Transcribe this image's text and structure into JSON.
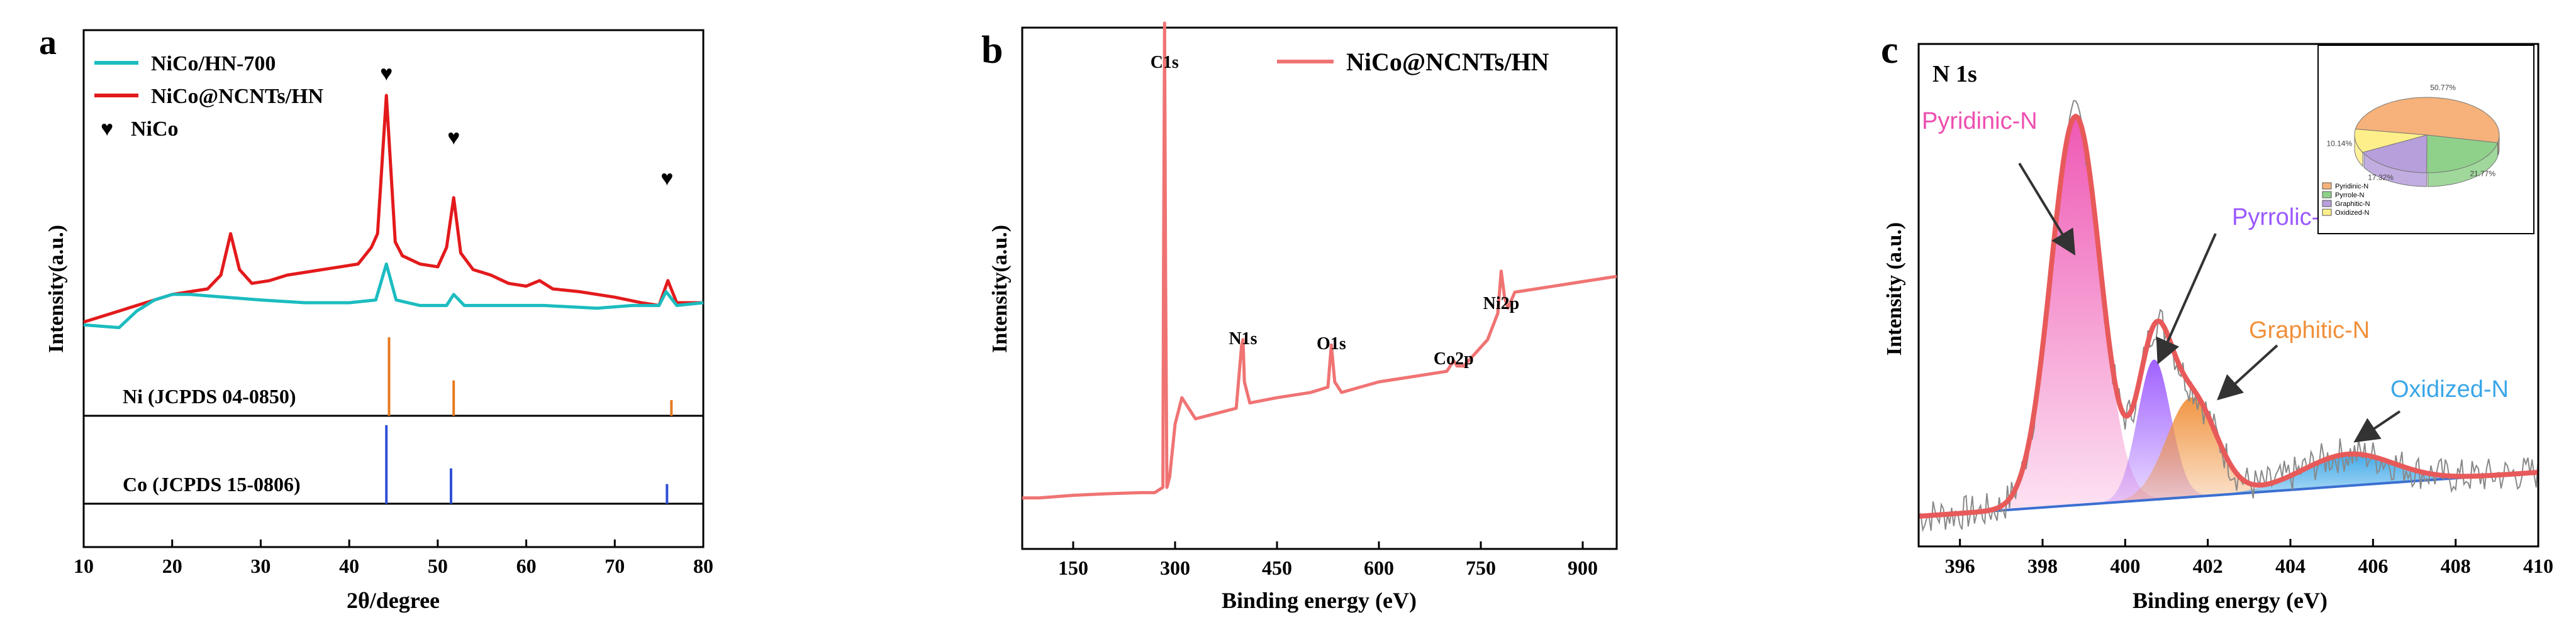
{
  "chart_data": [
    {
      "type": "line",
      "panel_label": "a",
      "title": "",
      "xlabel": "2θ/degree",
      "ylabel": "Intensity(a.u.)",
      "xlim": [
        10,
        80
      ],
      "xticks": [
        "10",
        "20",
        "30",
        "40",
        "50",
        "60",
        "70",
        "80"
      ],
      "legend": [
        "NiCo/HN-700",
        "NiCo@NCNTs/HN",
        "NiCo"
      ],
      "series": [
        {
          "name": "NiCo@NCNTs/HN",
          "color": "#e31a1c",
          "x": [
            10,
            12,
            14,
            16,
            18,
            20,
            22,
            24,
            25.5,
            26.6,
            27.6,
            29,
            31,
            33,
            35,
            37,
            39,
            41,
            42.5,
            43.2,
            44.2,
            45.2,
            46,
            48,
            50,
            51,
            51.8,
            52.6,
            54,
            56,
            58,
            60,
            61.5,
            63,
            66,
            70,
            73,
            75,
            76,
            77,
            80
          ],
          "y": [
            0.13,
            0.15,
            0.17,
            0.19,
            0.21,
            0.23,
            0.24,
            0.25,
            0.3,
            0.45,
            0.32,
            0.27,
            0.28,
            0.3,
            0.31,
            0.32,
            0.33,
            0.34,
            0.4,
            0.45,
            0.95,
            0.42,
            0.37,
            0.34,
            0.33,
            0.4,
            0.58,
            0.38,
            0.32,
            0.3,
            0.27,
            0.26,
            0.28,
            0.25,
            0.24,
            0.22,
            0.2,
            0.19,
            0.28,
            0.2,
            0.2
          ]
        },
        {
          "name": "NiCo/HN-700",
          "color": "#1bbcc0",
          "x": [
            10,
            14,
            16,
            18,
            20,
            22,
            26,
            30,
            35,
            40,
            43,
            44.2,
            45.3,
            48,
            51,
            51.8,
            53,
            57,
            62,
            68,
            72,
            75,
            75.8,
            77,
            80
          ],
          "y": [
            0.12,
            0.11,
            0.17,
            0.21,
            0.23,
            0.23,
            0.22,
            0.21,
            0.2,
            0.2,
            0.21,
            0.34,
            0.21,
            0.19,
            0.19,
            0.23,
            0.19,
            0.19,
            0.19,
            0.18,
            0.19,
            0.19,
            0.24,
            0.19,
            0.2
          ]
        }
      ],
      "references": [
        {
          "label": "Ni (JCPDS 04-0850)",
          "color": "#e8791f",
          "peaks": [
            {
              "x": 44.5,
              "h": 1
            },
            {
              "x": 51.8,
              "h": 0.45
            },
            {
              "x": 76.4,
              "h": 0.2
            }
          ]
        },
        {
          "label": "Co (JCPDS 15-0806)",
          "color": "#2f4fd6",
          "peaks": [
            {
              "x": 44.2,
              "h": 1
            },
            {
              "x": 51.5,
              "h": 0.45
            },
            {
              "x": 75.9,
              "h": 0.25
            }
          ]
        }
      ],
      "annotations": [
        {
          "text": "♥",
          "x": 44.2
        },
        {
          "text": "♥",
          "x": 51.8
        },
        {
          "text": "♥",
          "x": 75.9
        }
      ]
    },
    {
      "type": "line",
      "panel_label": "b",
      "title": "",
      "xlabel": "Binding energy (eV)",
      "ylabel": "Intensity(a.u.)",
      "xlim": [
        75,
        950
      ],
      "xticks": [
        "150",
        "300",
        "450",
        "600",
        "750",
        "900"
      ],
      "legend": [
        "NiCo@NCNTs/HN"
      ],
      "series": [
        {
          "name": "NiCo@NCNTs/HN",
          "color": "#f07373",
          "x": [
            75,
            100,
            150,
            200,
            250,
            270,
            282,
            283,
            284.5,
            286,
            288,
            292,
            300,
            310,
            330,
            360,
            390,
            398,
            400,
            402,
            410,
            450,
            500,
            525,
            530,
            535,
            545,
            600,
            650,
            700,
            710,
            715,
            725,
            760,
            775,
            780,
            785,
            790,
            800,
            850,
            900,
            950
          ],
          "y": [
            0.08,
            0.08,
            0.085,
            0.088,
            0.09,
            0.09,
            0.1,
            0.5,
            0.98,
            0.5,
            0.1,
            0.12,
            0.22,
            0.27,
            0.23,
            0.24,
            0.25,
            0.37,
            0.38,
            0.3,
            0.26,
            0.27,
            0.28,
            0.29,
            0.37,
            0.3,
            0.28,
            0.3,
            0.31,
            0.32,
            0.34,
            0.33,
            0.33,
            0.38,
            0.43,
            0.51,
            0.46,
            0.44,
            0.47,
            0.48,
            0.49,
            0.5
          ]
        }
      ],
      "annotations": [
        {
          "text": "C1s",
          "x": 284.5
        },
        {
          "text": "N1s",
          "x": 400
        },
        {
          "text": "O1s",
          "x": 530
        },
        {
          "text": "Co2p",
          "x": 710
        },
        {
          "text": "Ni2p",
          "x": 780
        }
      ]
    },
    {
      "type": "line",
      "panel_label": "c",
      "title": "N 1s",
      "xlabel": "Binding  energy (eV)",
      "ylabel": "Intensity (a.u.)",
      "xlim": [
        395,
        410
      ],
      "xticks": [
        "396",
        "398",
        "400",
        "402",
        "404",
        "406",
        "408",
        "410"
      ],
      "components": [
        {
          "name": "Pyridinic-N",
          "label_color": "#ee4fb0",
          "center": 398.8,
          "amplitude": 0.86,
          "sigma": 0.6
        },
        {
          "name": "Pyrrolic-N",
          "label_color": "#9b59ff",
          "center": 400.7,
          "amplitude": 0.31,
          "sigma": 0.4
        },
        {
          "name": "Graphitic-N",
          "label_color": "#f0903a",
          "center": 401.6,
          "amplitude": 0.22,
          "sigma": 0.6
        },
        {
          "name": "Oxidized-N",
          "label_color": "#3aa6e8",
          "center": 405.4,
          "amplitude": 0.07,
          "sigma": 1.1
        }
      ],
      "baseline": [
        [
          395,
          0.0
        ],
        [
          410,
          0.08
        ]
      ],
      "inset_pie": {
        "labels": [
          "Pyridinic-N",
          "Pyrrole-N",
          "Graphitic-N",
          "Oxidized-N"
        ],
        "values": [
          50.77,
          21.77,
          17.32,
          10.14
        ],
        "value_labels": [
          "50.77%",
          "21.77%",
          "17.32%",
          "10.14%"
        ],
        "colors": [
          "#f6b27a",
          "#8fd18a",
          "#b79fdc",
          "#ffef8a"
        ]
      }
    }
  ]
}
